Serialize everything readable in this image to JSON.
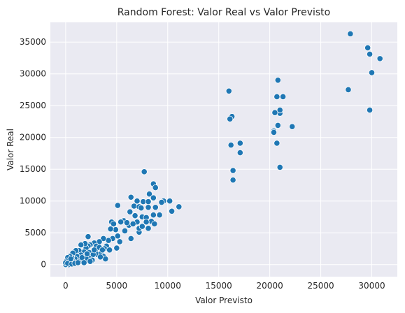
{
  "chart_data": {
    "type": "scatter",
    "title": "Random Forest: Valor Real vs Valor Previsto",
    "xlabel": "Valor Previsto",
    "ylabel": "Valor Real",
    "xlim": [
      -1500,
      32500
    ],
    "ylim": [
      -1900,
      38100
    ],
    "xticks": [
      0,
      5000,
      10000,
      15000,
      20000,
      25000,
      30000
    ],
    "yticks": [
      0,
      5000,
      10000,
      15000,
      20000,
      25000,
      30000,
      35000
    ],
    "xtick_labels": [
      "0",
      "5000",
      "10000",
      "15000",
      "20000",
      "25000",
      "30000"
    ],
    "ytick_labels": [
      "0",
      "5000",
      "10000",
      "15000",
      "20000",
      "25000",
      "30000",
      "35000"
    ],
    "grid": true,
    "colors": {
      "background": "#eaeaf2",
      "grid": "#ffffff",
      "point": "#1f77b4",
      "point_edge": "#ffffff"
    },
    "points": [
      [
        27900,
        36300
      ],
      [
        29600,
        34100
      ],
      [
        29800,
        33100
      ],
      [
        30800,
        32400
      ],
      [
        30000,
        30200
      ],
      [
        27700,
        27500
      ],
      [
        29800,
        24300
      ],
      [
        20800,
        29000
      ],
      [
        20700,
        26400
      ],
      [
        21300,
        26400
      ],
      [
        16000,
        27300
      ],
      [
        21000,
        23800
      ],
      [
        21000,
        24300
      ],
      [
        20500,
        23900
      ],
      [
        20800,
        21900
      ],
      [
        22200,
        21700
      ],
      [
        20400,
        21000
      ],
      [
        20400,
        20800
      ],
      [
        16300,
        23300
      ],
      [
        16100,
        22900
      ],
      [
        20700,
        19100
      ],
      [
        17100,
        19100
      ],
      [
        16200,
        18800
      ],
      [
        17100,
        17600
      ],
      [
        16400,
        14800
      ],
      [
        21000,
        15300
      ],
      [
        16400,
        13300
      ],
      [
        7700,
        14600
      ],
      [
        8600,
        12700
      ],
      [
        8800,
        12100
      ],
      [
        8200,
        11100
      ],
      [
        9600,
        10000
      ],
      [
        10200,
        10000
      ],
      [
        8600,
        10500
      ],
      [
        11100,
        9100
      ],
      [
        9400,
        9800
      ],
      [
        10400,
        8400
      ],
      [
        6400,
        10600
      ],
      [
        7000,
        10000
      ],
      [
        7600,
        9900
      ],
      [
        8100,
        9900
      ],
      [
        6700,
        9200
      ],
      [
        7200,
        9100
      ],
      [
        7400,
        8900
      ],
      [
        8100,
        9000
      ],
      [
        8800,
        9000
      ],
      [
        5100,
        9300
      ],
      [
        6300,
        8300
      ],
      [
        6800,
        7700
      ],
      [
        7500,
        7500
      ],
      [
        7900,
        7400
      ],
      [
        8600,
        7800
      ],
      [
        9200,
        7800
      ],
      [
        8400,
        6800
      ],
      [
        8700,
        6400
      ],
      [
        7900,
        6700
      ],
      [
        7000,
        6700
      ],
      [
        6200,
        6200
      ],
      [
        5700,
        6900
      ],
      [
        5400,
        6700
      ],
      [
        6000,
        6600
      ],
      [
        6600,
        6400
      ],
      [
        5800,
        5300
      ],
      [
        6400,
        4100
      ],
      [
        7200,
        5100
      ],
      [
        7200,
        5700
      ],
      [
        7500,
        6000
      ],
      [
        8100,
        5700
      ],
      [
        4500,
        6700
      ],
      [
        4700,
        6400
      ],
      [
        4900,
        5500
      ],
      [
        4400,
        5600
      ],
      [
        4600,
        4100
      ],
      [
        5100,
        4500
      ],
      [
        5300,
        3600
      ],
      [
        4200,
        3800
      ],
      [
        3700,
        4100
      ],
      [
        4000,
        2900
      ],
      [
        3800,
        2500
      ],
      [
        4300,
        2300
      ],
      [
        5000,
        2600
      ],
      [
        3300,
        3600
      ],
      [
        2800,
        3400
      ],
      [
        2900,
        2100
      ],
      [
        3100,
        1600
      ],
      [
        3500,
        1800
      ],
      [
        3700,
        1300
      ],
      [
        3900,
        900
      ],
      [
        2200,
        4400
      ],
      [
        2400,
        3100
      ],
      [
        2200,
        2900
      ],
      [
        2000,
        2600
      ],
      [
        1800,
        2000
      ],
      [
        1900,
        1400
      ],
      [
        2300,
        1900
      ],
      [
        2500,
        1300
      ],
      [
        2700,
        1600
      ],
      [
        2000,
        1000
      ],
      [
        1600,
        600
      ],
      [
        1700,
        400
      ],
      [
        1400,
        800
      ],
      [
        1200,
        1900
      ],
      [
        1300,
        2200
      ],
      [
        1500,
        1500
      ],
      [
        1000,
        2200
      ],
      [
        1100,
        1300
      ],
      [
        900,
        900
      ],
      [
        800,
        400
      ],
      [
        700,
        1800
      ],
      [
        600,
        1100
      ],
      [
        500,
        600
      ],
      [
        400,
        300
      ],
      [
        400,
        1300
      ],
      [
        300,
        900
      ],
      [
        300,
        0
      ],
      [
        200,
        400
      ],
      [
        200,
        1100
      ],
      [
        100,
        100
      ],
      [
        100,
        600
      ],
      [
        0,
        0
      ],
      [
        0,
        300
      ],
      [
        200,
        200
      ],
      [
        600,
        100
      ],
      [
        900,
        200
      ],
      [
        500,
        900
      ],
      [
        1200,
        300
      ],
      [
        1600,
        1100
      ],
      [
        2100,
        1700
      ],
      [
        2600,
        700
      ],
      [
        3000,
        2900
      ],
      [
        3300,
        2700
      ],
      [
        3400,
        1200
      ],
      [
        3600,
        2300
      ],
      [
        2800,
        2300
      ],
      [
        1900,
        3300
      ],
      [
        1500,
        3100
      ],
      [
        2400,
        500
      ],
      [
        1800,
        300
      ]
    ]
  }
}
